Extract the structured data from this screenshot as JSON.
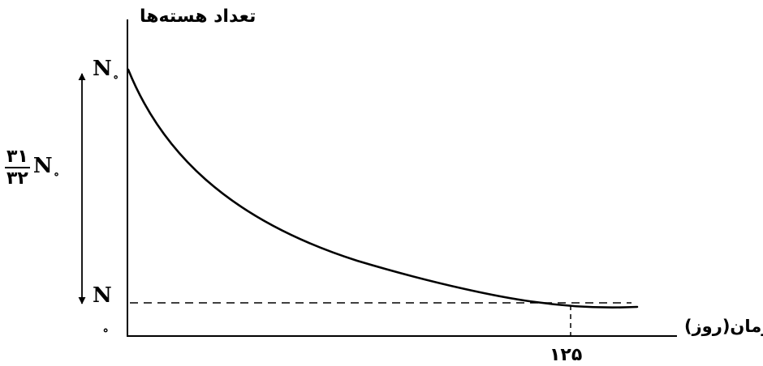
{
  "axes": {
    "y_label": "تعداد هسته‌ها",
    "x_label": "زمان(روز)"
  },
  "labels": {
    "n0": {
      "base": "N",
      "sub": "∘"
    },
    "n": "N",
    "origin": "∘",
    "fraction": {
      "numerator": "۳۱",
      "denominator": "۳۲",
      "base": "N",
      "sub": "∘"
    },
    "time_tick": "۱۲۵"
  },
  "colors": {
    "stroke": "#000000",
    "background": "#ffffff"
  }
}
